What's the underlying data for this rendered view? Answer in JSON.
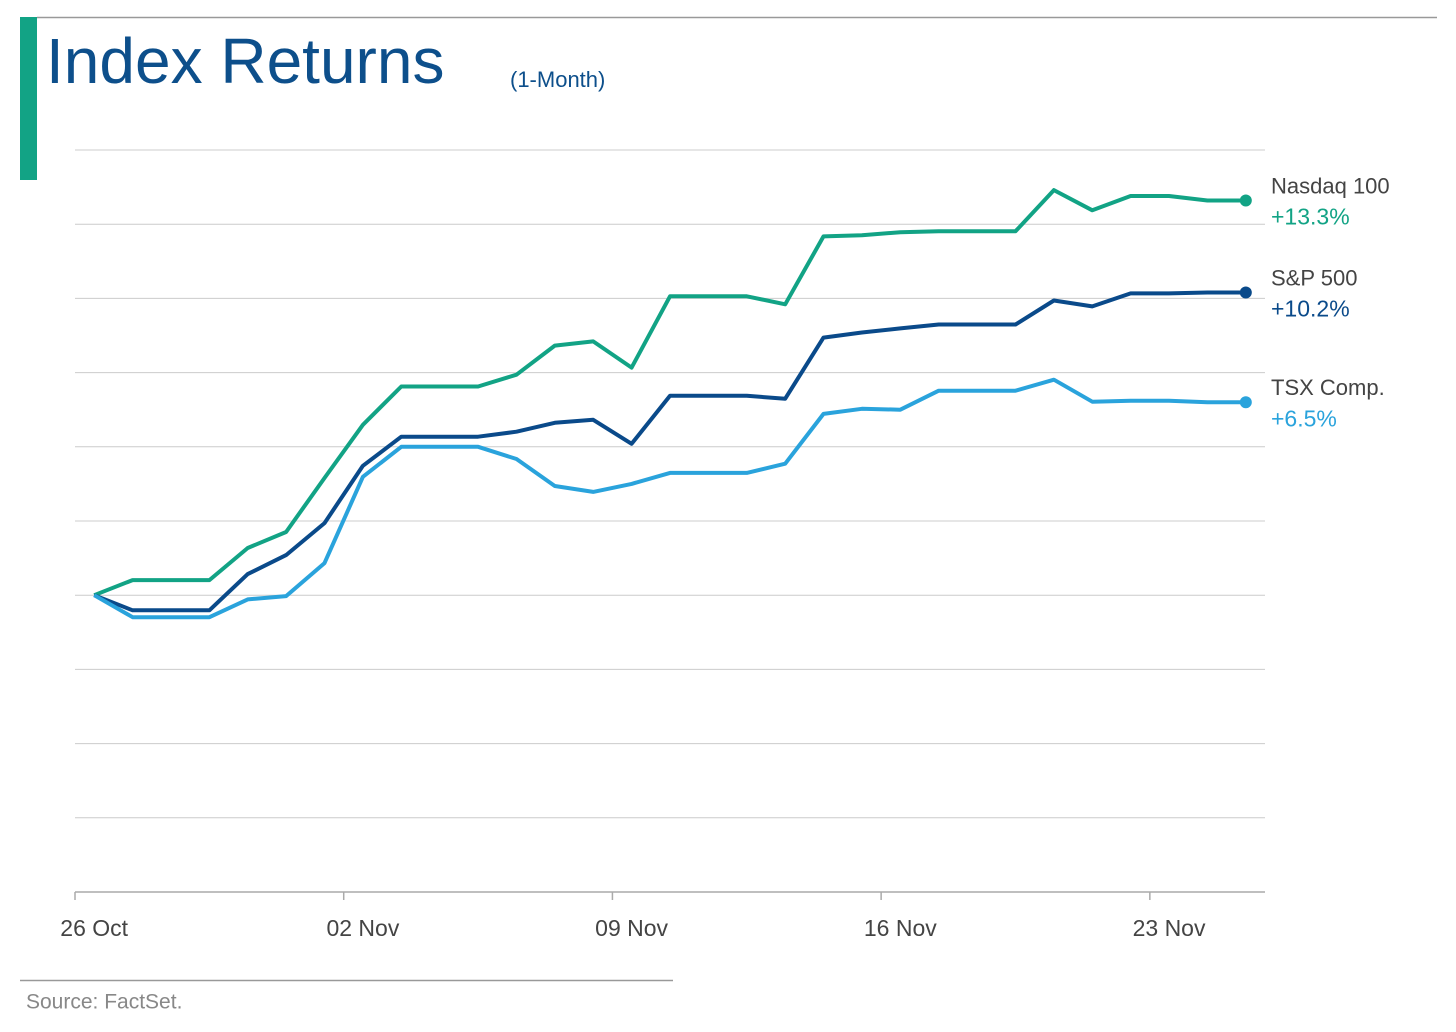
{
  "chart_data": {
    "type": "line",
    "title": "Index Returns",
    "subtitle": "(1-Month)",
    "source": "Source: FactSet.",
    "categories": [
      "26 Oct",
      null,
      null,
      null,
      null,
      null,
      null,
      "02 Nov",
      null,
      null,
      null,
      null,
      null,
      null,
      "09 Nov",
      null,
      null,
      null,
      null,
      null,
      null,
      "16 Nov",
      null,
      null,
      null,
      null,
      null,
      null,
      "23 Nov",
      null,
      null
    ],
    "ylim": [
      -10,
      15
    ],
    "yticks": [
      -10,
      -7.5,
      -5,
      -2.5,
      0,
      2.5,
      5,
      7.5,
      10,
      12.5,
      15
    ],
    "grid": true,
    "series": [
      {
        "name": "Nasdaq 100",
        "color": "#12a385",
        "values": [
          0,
          0.51,
          0.51,
          0.51,
          1.59,
          2.13,
          3.95,
          5.74,
          7.03,
          7.03,
          7.03,
          7.43,
          8.41,
          8.55,
          7.67,
          10.07,
          10.07,
          10.07,
          9.8,
          12.09,
          12.13,
          12.23,
          12.26,
          12.26,
          12.26,
          13.65,
          12.97,
          13.45,
          13.45,
          13.3,
          13.3
        ],
        "value_labels": [
          null,
          null,
          null,
          null,
          null,
          null,
          null,
          null,
          null,
          null,
          null,
          null,
          null,
          null,
          null,
          null,
          null,
          null,
          null,
          null,
          null,
          null,
          null,
          null,
          null,
          null,
          null,
          null,
          null,
          null,
          "+13.3%"
        ]
      },
      {
        "name": "S&P 500",
        "color": "#0a4a8a",
        "values": [
          0,
          -0.51,
          -0.51,
          -0.51,
          0.71,
          1.35,
          2.43,
          4.36,
          5.34,
          5.34,
          5.34,
          5.51,
          5.81,
          5.91,
          5.1,
          6.72,
          6.72,
          6.72,
          6.62,
          8.68,
          8.85,
          8.99,
          9.12,
          9.12,
          9.12,
          9.93,
          9.73,
          10.17,
          10.17,
          10.2,
          10.2
        ],
        "value_labels": [
          null,
          null,
          null,
          null,
          null,
          null,
          null,
          null,
          null,
          null,
          null,
          null,
          null,
          null,
          null,
          null,
          null,
          null,
          null,
          null,
          null,
          null,
          null,
          null,
          null,
          null,
          null,
          null,
          null,
          null,
          "+10.2%"
        ]
      },
      {
        "name": "TSX Comp.",
        "color": "#2aa3dc",
        "values": [
          0,
          -0.74,
          -0.74,
          -0.74,
          -0.14,
          -0.03,
          1.08,
          3.99,
          5.0,
          5.0,
          5.0,
          4.59,
          3.68,
          3.48,
          3.75,
          4.12,
          4.12,
          4.12,
          4.43,
          6.11,
          6.28,
          6.25,
          6.89,
          6.89,
          6.89,
          7.26,
          6.52,
          6.55,
          6.55,
          6.5,
          6.5
        ],
        "value_labels": [
          null,
          null,
          null,
          null,
          null,
          null,
          null,
          null,
          null,
          null,
          null,
          null,
          null,
          null,
          null,
          null,
          null,
          null,
          null,
          null,
          null,
          null,
          null,
          null,
          null,
          null,
          null,
          null,
          null,
          null,
          "+6.5%"
        ]
      }
    ]
  }
}
